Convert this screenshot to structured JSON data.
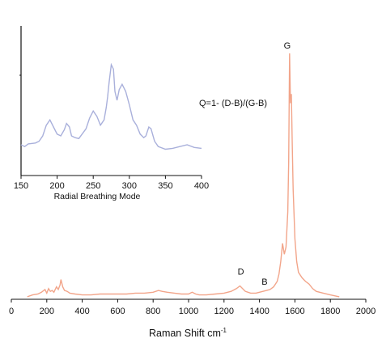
{
  "chart_data": [
    {
      "type": "line",
      "role": "main",
      "title": "",
      "xlabel": "Raman Shift cm",
      "xlabel_superscript": "-1",
      "ylabel": "",
      "xlim": [
        0,
        2000
      ],
      "x_ticks": [
        0,
        200,
        400,
        600,
        800,
        1000,
        1200,
        1400,
        1600,
        1800,
        2000
      ],
      "grid": false,
      "series_color": "#f2a58a",
      "series": [
        {
          "x": [
            90,
            120,
            150,
            170,
            190,
            200,
            210,
            220,
            230,
            240,
            255,
            265,
            275,
            280,
            285,
            290,
            300,
            315,
            330,
            360,
            400,
            450,
            500,
            550,
            600,
            650,
            700,
            750,
            800,
            830,
            850,
            880,
            920,
            960,
            1000,
            1020,
            1040,
            1060,
            1100,
            1150,
            1200,
            1240,
            1270,
            1290,
            1300,
            1320,
            1350,
            1380,
            1400,
            1420,
            1440,
            1460,
            1480,
            1500,
            1510,
            1520,
            1530,
            1540,
            1550,
            1560,
            1565,
            1570,
            1575,
            1580,
            1585,
            1590,
            1600,
            1610,
            1620,
            1640,
            1660,
            1680,
            1700,
            1720,
            1760,
            1800,
            1850
          ],
          "y": [
            1,
            3,
            4,
            6,
            9,
            5,
            10,
            7,
            8,
            6,
            12,
            9,
            14,
            20,
            16,
            12,
            8,
            7,
            5,
            4,
            3,
            3,
            4,
            4,
            4,
            4,
            5,
            5,
            6,
            8,
            7,
            6,
            5,
            4,
            4,
            6,
            4,
            3,
            3,
            4,
            5,
            7,
            10,
            13,
            11,
            7,
            5,
            5,
            6,
            7,
            8,
            9,
            12,
            18,
            26,
            40,
            60,
            48,
            56,
            95,
            150,
            270,
            215,
            225,
            170,
            120,
            65,
            40,
            28,
            22,
            18,
            15,
            10,
            7,
            5,
            3,
            1
          ]
        }
      ],
      "annotations": [
        {
          "text": "G",
          "x": 1575,
          "y": 270
        },
        {
          "text": "D",
          "x": 1295,
          "y": 13
        },
        {
          "text": "B",
          "x": 1420,
          "y": 7
        }
      ]
    },
    {
      "type": "line",
      "role": "inset",
      "title": "",
      "xlabel": "Radial Breathing Mode",
      "ylabel": "",
      "xlim": [
        150,
        400
      ],
      "x_ticks": [
        150,
        200,
        250,
        300,
        350,
        400
      ],
      "grid": false,
      "series_color": "#a9b0db",
      "series": [
        {
          "x": [
            150,
            155,
            160,
            170,
            175,
            180,
            185,
            190,
            195,
            200,
            205,
            210,
            213,
            217,
            220,
            225,
            230,
            240,
            245,
            250,
            255,
            260,
            265,
            268,
            270,
            272,
            275,
            278,
            280,
            283,
            286,
            290,
            295,
            300,
            305,
            310,
            315,
            320,
            323,
            327,
            330,
            335,
            340,
            350,
            360,
            370,
            380,
            390,
            400
          ],
          "y": [
            10,
            8,
            11,
            12,
            14,
            20,
            32,
            38,
            30,
            22,
            20,
            27,
            34,
            30,
            20,
            18,
            17,
            28,
            40,
            48,
            42,
            32,
            38,
            52,
            64,
            80,
            100,
            95,
            70,
            60,
            72,
            78,
            70,
            55,
            38,
            32,
            22,
            18,
            20,
            30,
            28,
            14,
            8,
            5,
            6,
            8,
            10,
            7,
            6
          ]
        }
      ],
      "annotations": []
    }
  ],
  "formula": "Q=1- (D-B)/(G-B)"
}
